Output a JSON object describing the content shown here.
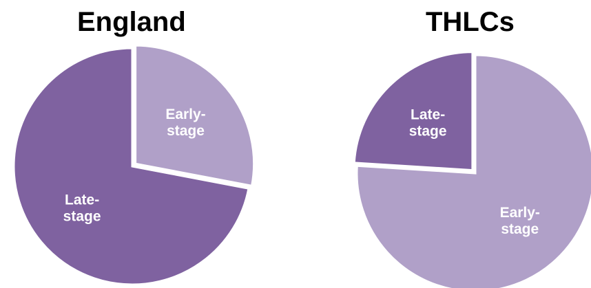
{
  "chart_data": [
    {
      "type": "pie",
      "title": "England",
      "slices": [
        {
          "label": [
            "Early-",
            "stage"
          ],
          "value": 28,
          "color": "#b0a0c8"
        },
        {
          "label": [
            "Late-",
            "stage"
          ],
          "value": 72,
          "color": "#7f62a0"
        }
      ],
      "start_angle_deg": 0,
      "direction": "clockwise",
      "exploded_slice": 0
    },
    {
      "type": "pie",
      "title": "THLCs",
      "slices": [
        {
          "label": [
            "Early-",
            "stage"
          ],
          "value": 76,
          "color": "#b0a0c8"
        },
        {
          "label": [
            "Late-",
            "stage"
          ],
          "value": 24,
          "color": "#7f62a0"
        }
      ],
      "start_angle_deg": 0,
      "direction": "clockwise",
      "exploded_slice": 1
    }
  ]
}
